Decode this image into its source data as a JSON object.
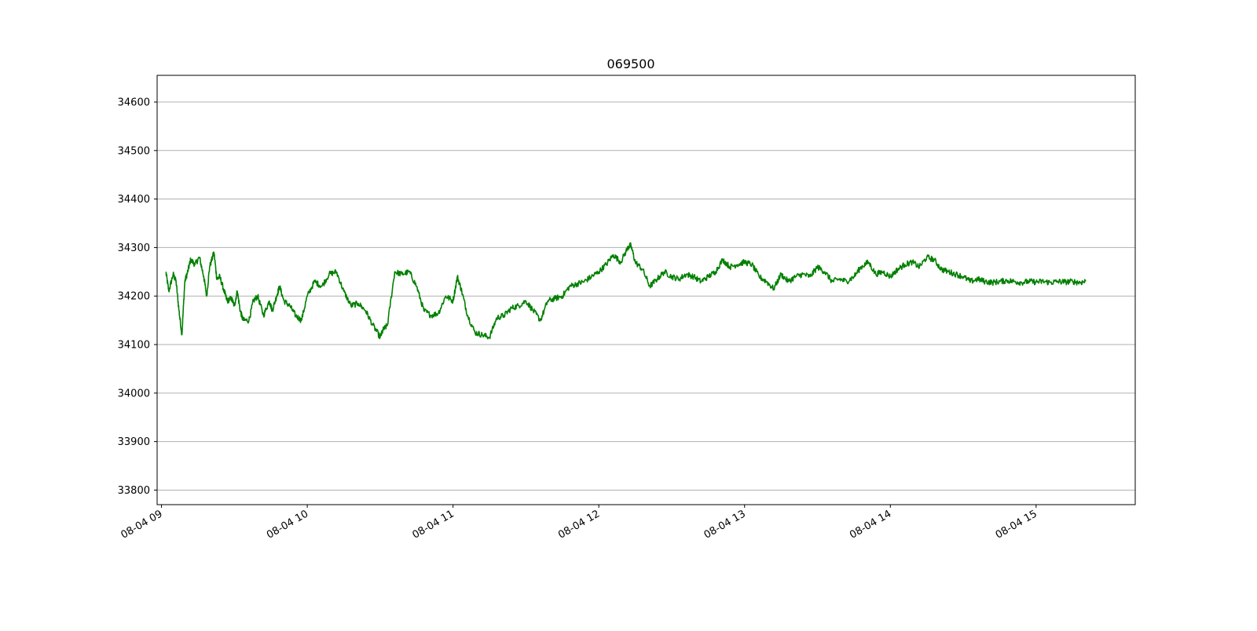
{
  "chart_data": {
    "type": "line",
    "title": "069500",
    "xlabel": "",
    "ylabel": "",
    "x_tick_labels": [
      "08-04 09",
      "08-04 10",
      "08-04 11",
      "08-04 12",
      "08-04 13",
      "08-04 14",
      "08-04 15"
    ],
    "y_tick_labels": [
      "33800",
      "33900",
      "34000",
      "34100",
      "34200",
      "34300",
      "34400",
      "34500",
      "34600"
    ],
    "xlim": [
      -0.03,
      6.68
    ],
    "ylim": [
      33770,
      34655
    ],
    "grid": "horizontal",
    "line_color": "#008000",
    "x_units": "hours after 08-04 09:00",
    "series": [
      {
        "x": [
          0.03,
          0.05,
          0.08,
          0.1,
          0.12,
          0.14,
          0.16,
          0.18,
          0.2,
          0.23,
          0.26,
          0.29,
          0.31,
          0.33,
          0.36,
          0.38,
          0.4,
          0.43,
          0.45,
          0.48,
          0.5,
          0.52,
          0.54,
          0.56,
          0.6,
          0.63,
          0.66,
          0.7,
          0.74,
          0.76,
          0.79,
          0.81,
          0.84,
          0.88,
          0.92,
          0.96,
          1.0,
          1.05,
          1.1,
          1.15,
          1.2,
          1.25,
          1.3,
          1.35,
          1.4,
          1.45,
          1.5,
          1.52,
          1.55,
          1.6,
          1.65,
          1.7,
          1.75,
          1.8,
          1.85,
          1.9,
          1.95,
          2.0,
          2.03,
          2.06,
          2.1,
          2.15,
          2.2,
          2.25,
          2.3,
          2.35,
          2.4,
          2.45,
          2.5,
          2.55,
          2.6,
          2.65,
          2.7,
          2.75,
          2.8,
          2.85,
          2.9,
          2.95,
          3.0,
          3.05,
          3.1,
          3.15,
          3.2,
          3.22,
          3.25,
          3.3,
          3.35,
          3.4,
          3.45,
          3.5,
          3.55,
          3.6,
          3.65,
          3.7,
          3.75,
          3.8,
          3.85,
          3.9,
          3.95,
          4.0,
          4.05,
          4.1,
          4.15,
          4.2,
          4.25,
          4.3,
          4.35,
          4.4,
          4.45,
          4.5,
          4.55,
          4.6,
          4.65,
          4.7,
          4.75,
          4.8,
          4.85,
          4.9,
          4.95,
          5.0,
          5.05,
          5.1,
          5.15,
          5.2,
          5.25,
          5.3,
          5.35,
          5.4,
          5.45,
          5.5,
          5.55,
          5.6,
          5.65,
          5.7,
          5.75,
          5.8,
          5.85,
          5.9,
          5.95,
          6.0,
          6.05,
          6.1,
          6.15,
          6.2,
          6.25,
          6.3,
          6.34
        ],
        "y": [
          34250,
          34210,
          34245,
          34230,
          34170,
          34120,
          34230,
          34250,
          34275,
          34265,
          34280,
          34240,
          34200,
          34260,
          34290,
          34235,
          34240,
          34210,
          34190,
          34195,
          34180,
          34210,
          34170,
          34150,
          34150,
          34190,
          34200,
          34160,
          34190,
          34170,
          34200,
          34220,
          34190,
          34180,
          34160,
          34150,
          34200,
          34230,
          34220,
          34245,
          34250,
          34210,
          34180,
          34185,
          34170,
          34140,
          34115,
          34130,
          34140,
          34250,
          34245,
          34250,
          34220,
          34170,
          34160,
          34165,
          34200,
          34190,
          34240,
          34210,
          34160,
          34125,
          34120,
          34115,
          34155,
          34160,
          34175,
          34180,
          34190,
          34170,
          34150,
          34190,
          34195,
          34200,
          34220,
          34225,
          34230,
          34240,
          34250,
          34265,
          34285,
          34270,
          34300,
          34305,
          34270,
          34255,
          34220,
          34235,
          34250,
          34240,
          34235,
          34245,
          34240,
          34230,
          34240,
          34250,
          34275,
          34260,
          34265,
          34270,
          34265,
          34240,
          34230,
          34215,
          34245,
          34230,
          34240,
          34245,
          34240,
          34260,
          34250,
          34230,
          34235,
          34230,
          34240,
          34260,
          34270,
          34245,
          34250,
          34240,
          34255,
          34265,
          34270,
          34260,
          34280,
          34275,
          34255,
          34250,
          34245,
          34240,
          34230,
          34235,
          34230,
          34228,
          34230,
          34232,
          34230,
          34228,
          34230,
          34229,
          34230,
          34228,
          34230,
          34229,
          34230,
          34228,
          34230
        ]
      }
    ]
  }
}
